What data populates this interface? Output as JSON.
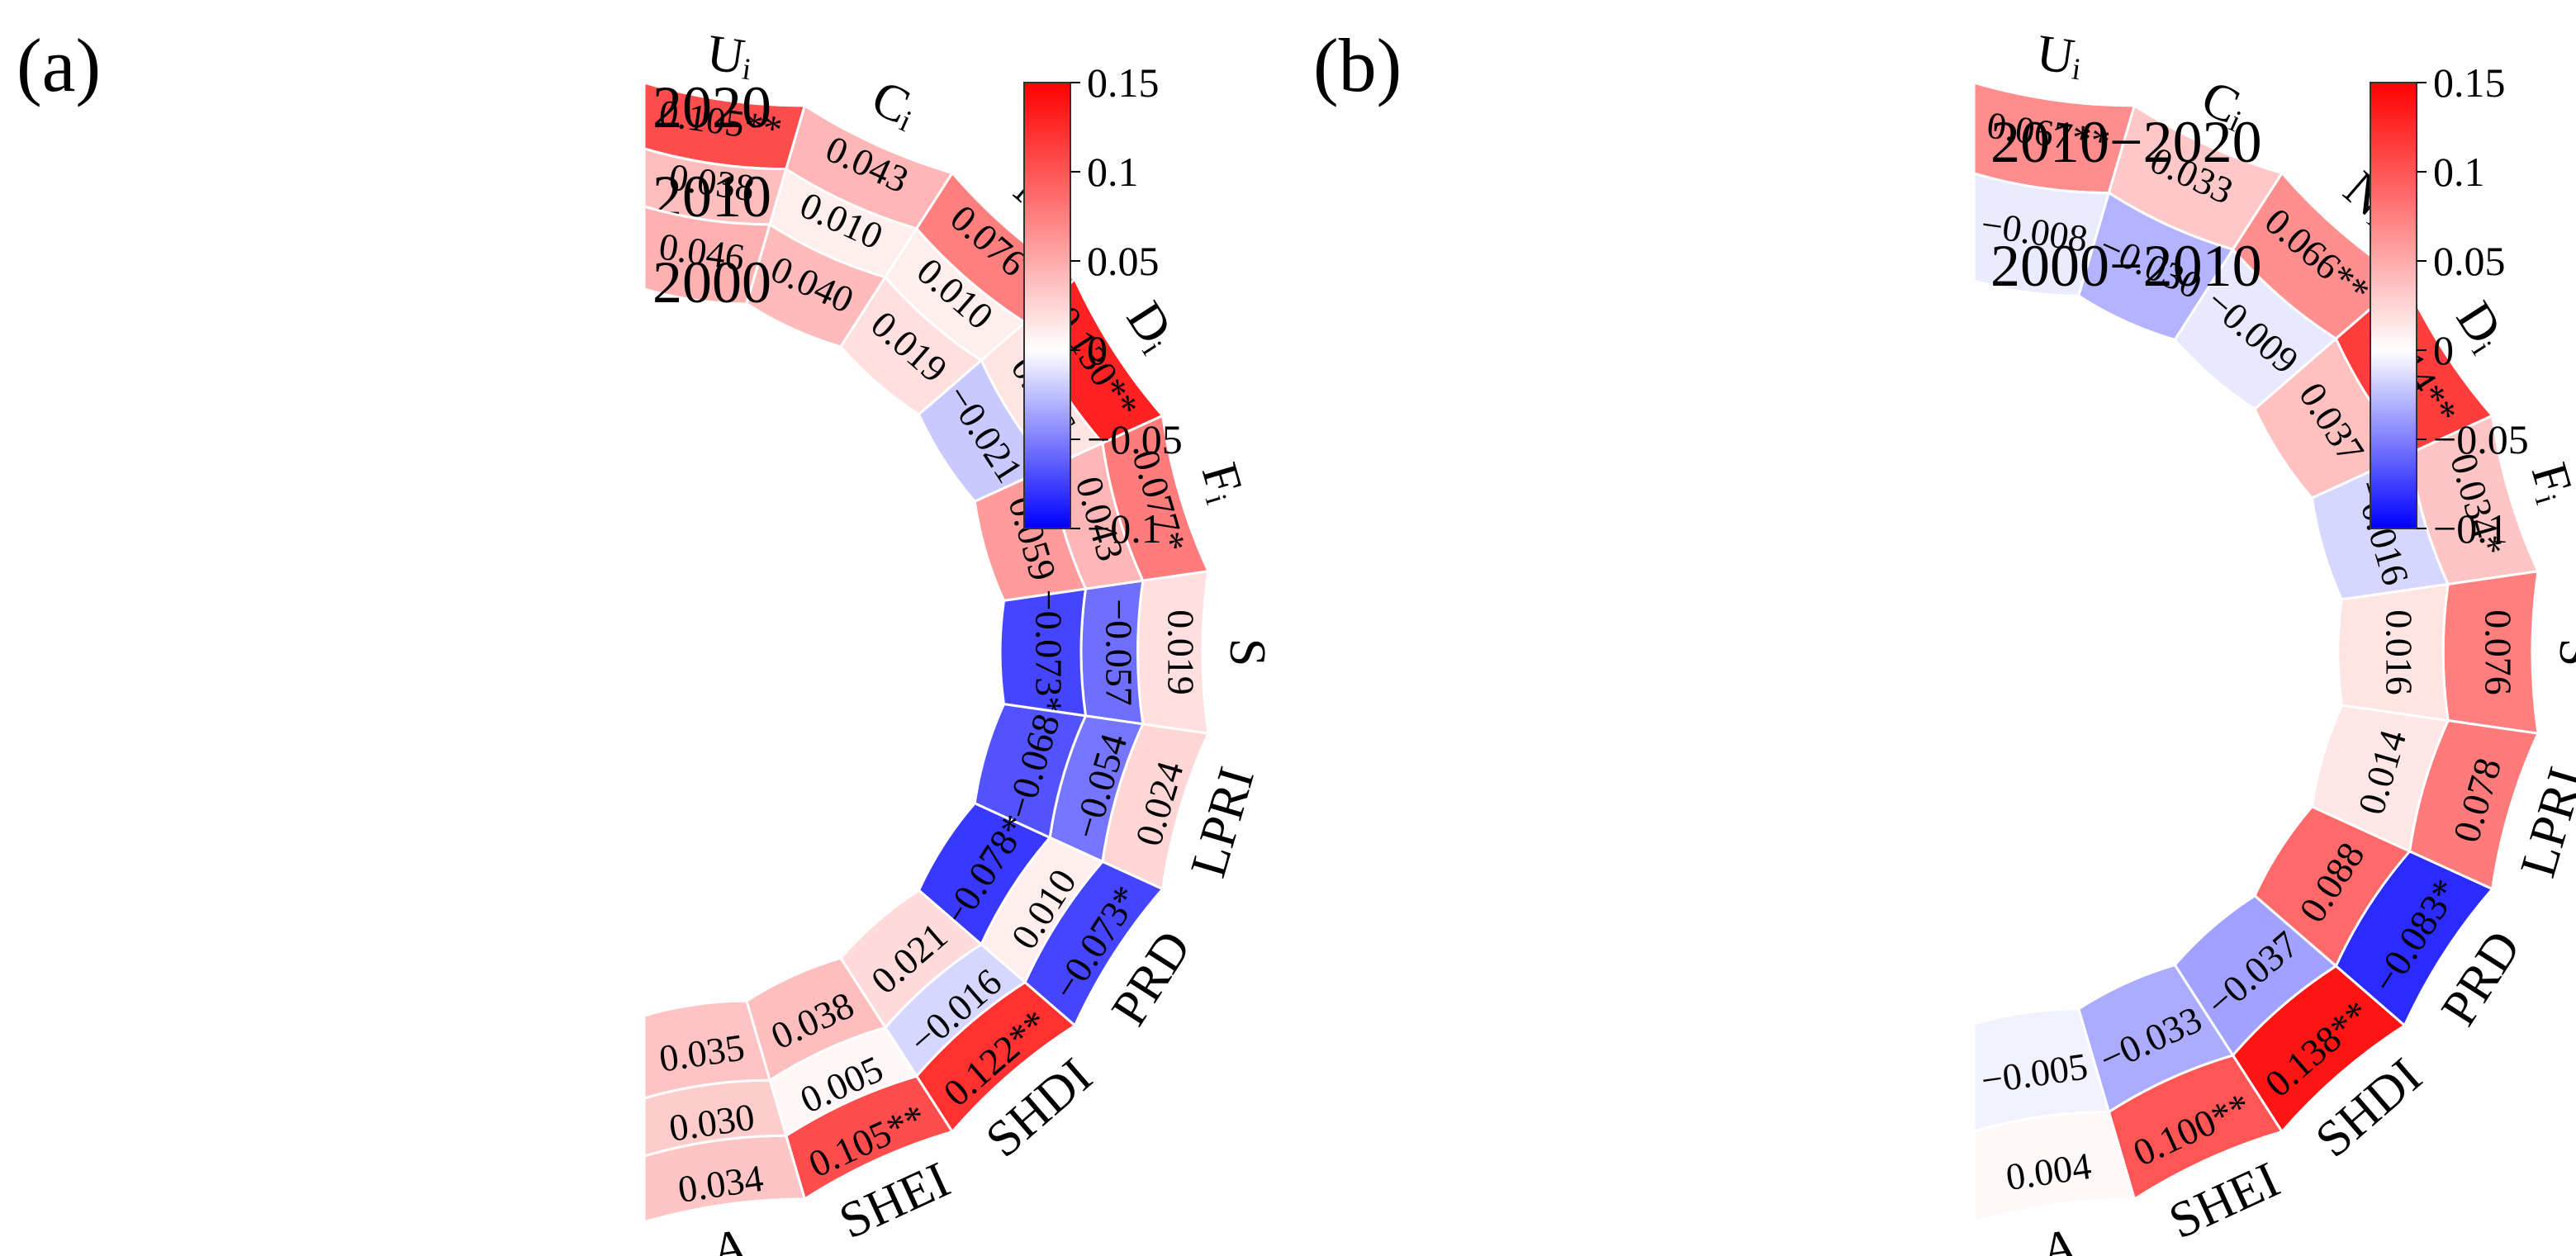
{
  "chart_data": [
    {
      "type": "heatmap",
      "panel_label": "(a)",
      "categories": [
        "Uᵢ",
        "Cᵢ",
        "Nᵢ",
        "Dᵢ",
        "Fᵢ",
        "S",
        "LPRI",
        "PRD",
        "SHDI",
        "SHEI",
        "A"
      ],
      "series": [
        {
          "name": "2020",
          "values": [
            0.105,
            0.043,
            0.076,
            0.13,
            0.077,
            0.019,
            0.024,
            -0.073,
            0.122,
            0.105,
            0.034
          ],
          "labels": [
            "0.105**",
            "0.043",
            "0.076*",
            "0.130**",
            "0.077*",
            "0.019",
            "0.024",
            "−0.073*",
            "0.122**",
            "0.105**",
            "0.034"
          ]
        },
        {
          "name": "2010",
          "values": [
            0.038,
            0.01,
            0.01,
            0.016,
            0.043,
            -0.057,
            -0.054,
            0.01,
            -0.016,
            0.005,
            0.03
          ],
          "labels": [
            "0.038",
            "0.010",
            "0.010",
            "0.016",
            "0.043",
            "−0.057",
            "−0.054",
            "0.010",
            "−0.016",
            "0.005",
            "0.030"
          ]
        },
        {
          "name": "2000",
          "values": [
            0.046,
            0.04,
            0.019,
            -0.021,
            0.059,
            -0.073,
            -0.068,
            -0.078,
            0.021,
            0.038,
            0.035
          ],
          "labels": [
            "0.046",
            "0.040",
            "0.019",
            "−0.021",
            "0.059",
            "−0.073*",
            "−0.068",
            "−0.078*",
            "0.021",
            "0.038",
            "0.035"
          ]
        }
      ],
      "colorbar": {
        "min": -0.1,
        "max": 0.15,
        "ticks": [
          "0.15",
          "0.1",
          "0.05",
          "0",
          "−0.05",
          "−0.1"
        ],
        "colors": [
          "#0000ff",
          "#ffffff",
          "#ff0000"
        ]
      }
    },
    {
      "type": "heatmap",
      "panel_label": "(b)",
      "categories": [
        "Uᵢ",
        "Cᵢ",
        "Nᵢ",
        "Dᵢ",
        "Fᵢ",
        "S",
        "LPRI",
        "PRD",
        "SHDI",
        "SHEI",
        "A"
      ],
      "series": [
        {
          "name": "2010−2020",
          "values": [
            0.067,
            0.033,
            0.066,
            0.114,
            0.034,
            0.076,
            0.078,
            -0.083,
            0.138,
            0.1,
            0.004
          ],
          "labels": [
            "0.067**",
            "0.033",
            "0.066**",
            "0.114**",
            "0.034*",
            "0.076",
            "0.078",
            "−0.083*",
            "0.138**",
            "0.100**",
            "0.004"
          ]
        },
        {
          "name": "2000−2010",
          "values": [
            -0.008,
            -0.03,
            -0.009,
            0.037,
            -0.016,
            0.016,
            0.014,
            0.088,
            -0.037,
            -0.033,
            -0.005
          ],
          "labels": [
            "−0.008",
            "−0.030",
            "−0.009",
            "0.037",
            "−0.016",
            "0.016",
            "0.014",
            "0.088",
            "−0.037",
            "−0.033",
            "−0.005"
          ]
        }
      ],
      "colorbar": {
        "min": -0.1,
        "max": 0.15,
        "ticks": [
          "0.15",
          "0.1",
          "0.05",
          "0",
          "−0.05",
          "−0.1"
        ],
        "colors": [
          "#0000ff",
          "#ffffff",
          "#ff0000"
        ]
      }
    }
  ]
}
